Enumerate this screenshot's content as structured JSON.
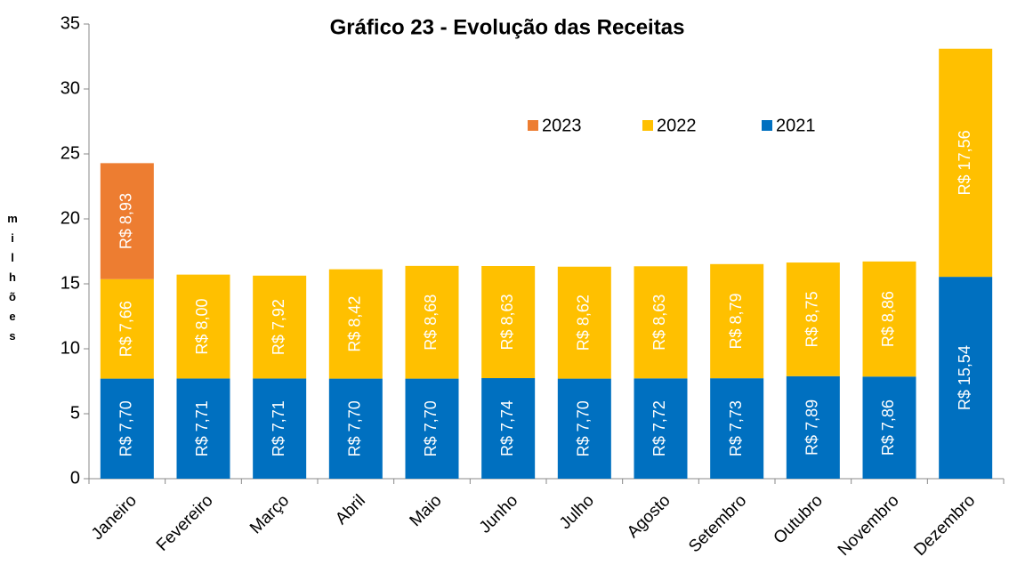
{
  "chart_data": {
    "type": "stacked_bar",
    "title": "Gráfico 23 - Evolução das Receitas",
    "y_label": "milhões",
    "categories": [
      "Janeiro",
      "Fevereiro",
      "Março",
      "Abril",
      "Maio",
      "Junho",
      "Julho",
      "Agosto",
      "Setembro",
      "Outubro",
      "Novembro",
      "Dezembro"
    ],
    "series": [
      {
        "name": "2021",
        "color": "#0070c0",
        "values": [
          7.7,
          7.71,
          7.71,
          7.7,
          7.7,
          7.74,
          7.7,
          7.72,
          7.73,
          7.89,
          7.86,
          15.54
        ],
        "value_labels": [
          "R$ 7,70",
          "R$ 7,71",
          "R$ 7,71",
          "R$ 7,70",
          "R$ 7,70",
          "R$ 7,74",
          "R$ 7,70",
          "R$ 7,72",
          "R$ 7,73",
          "R$ 7,89",
          "R$ 7,86",
          "R$ 15,54"
        ]
      },
      {
        "name": "2022",
        "color": "#ffc000",
        "values": [
          7.66,
          8.0,
          7.92,
          8.42,
          8.68,
          8.63,
          8.62,
          8.63,
          8.79,
          8.75,
          8.86,
          17.56
        ],
        "value_labels": [
          "R$ 7,66",
          "R$ 8,00",
          "R$ 7,92",
          "R$ 8,42",
          "R$ 8,68",
          "R$ 8,63",
          "R$ 8,62",
          "R$ 8,63",
          "R$ 8,79",
          "R$ 8,75",
          "R$ 8,86",
          "R$ 17,56"
        ]
      },
      {
        "name": "2023",
        "color": "#ed7d31",
        "values": [
          8.93,
          null,
          null,
          null,
          null,
          null,
          null,
          null,
          null,
          null,
          null,
          null
        ],
        "value_labels": [
          "R$ 8,93",
          null,
          null,
          null,
          null,
          null,
          null,
          null,
          null,
          null,
          null,
          null
        ]
      }
    ],
    "legend_order": [
      "2023",
      "2022",
      "2021"
    ],
    "ylim": [
      0,
      35
    ],
    "yticks": [
      0,
      5,
      10,
      15,
      20,
      25,
      30,
      35
    ]
  }
}
